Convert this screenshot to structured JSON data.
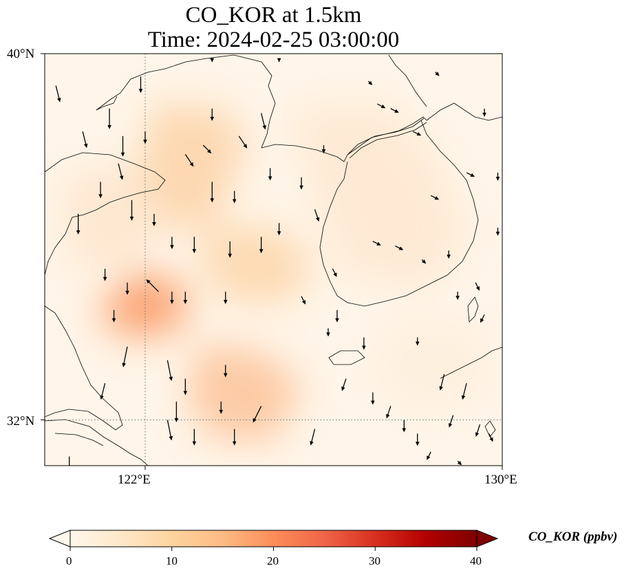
{
  "title": {
    "line1": "CO_KOR at 1.5km",
    "line2": "Time: 2024-02-25 03:00:00"
  },
  "map": {
    "lon_range": [
      119.75,
      130
    ],
    "lat_range": [
      31,
      40
    ],
    "lat_ticks": [
      {
        "value": 40,
        "label": "40°N"
      },
      {
        "value": 32,
        "label": "32°N"
      }
    ],
    "lon_ticks": [
      {
        "value": 122,
        "label": "122°E"
      },
      {
        "value": 130,
        "label": "130°E"
      }
    ],
    "gridlines": {
      "lat": [
        32
      ],
      "lon": [
        122
      ],
      "style": "dotted"
    },
    "field_unit": "ppbv",
    "hotspots": [
      {
        "name": "hotspot-bohai",
        "lon": 122.8,
        "lat": 37.5,
        "value": 14
      },
      {
        "name": "hotspot-shandong-south",
        "lon": 122.1,
        "lat": 34.8,
        "value": 25
      },
      {
        "name": "hotspot-yellow-sea-central",
        "lon": 124.2,
        "lat": 35.5,
        "value": 12
      },
      {
        "name": "hotspot-shanghai-offshore",
        "lon": 123.5,
        "lat": 32.5,
        "value": 17
      },
      {
        "name": "hotspot-korea-central",
        "lon": 127.0,
        "lat": 36.0,
        "value": 5
      },
      {
        "name": "hotspot-korea-north",
        "lon": 125.8,
        "lat": 38.2,
        "value": 6
      }
    ]
  },
  "colorbar": {
    "label": "CO_KOR (ppbv)",
    "min": 0,
    "max": 40,
    "extend": "both",
    "colormap": "OrRd",
    "colors": [
      "#fff7ec",
      "#fee8c8",
      "#fdd49e",
      "#fdbb84",
      "#fc8d59",
      "#ef6548",
      "#d7301f",
      "#b30000",
      "#7f0000"
    ],
    "ticks": [
      {
        "value": 0,
        "label": "0"
      },
      {
        "value": 10,
        "label": "10"
      },
      {
        "value": 20,
        "label": "20"
      },
      {
        "value": 30,
        "label": "30"
      },
      {
        "value": 40,
        "label": "40"
      }
    ]
  },
  "wind_vectors": [
    [
      120.0,
      39.3,
      0.1,
      -0.4
    ],
    [
      120.6,
      38.3,
      0.1,
      -0.4
    ],
    [
      121.5,
      38.2,
      0,
      -0.5
    ],
    [
      121.9,
      39.5,
      0,
      -0.4
    ],
    [
      121.4,
      37.6,
      0.1,
      -0.4
    ],
    [
      121.7,
      36.8,
      0,
      -0.5
    ],
    [
      121.0,
      37.2,
      0,
      -0.4
    ],
    [
      120.5,
      36.5,
      0,
      -0.5
    ],
    [
      122.2,
      36.5,
      0,
      -0.3
    ],
    [
      122.6,
      36.0,
      0,
      -0.3
    ],
    [
      123.1,
      36.0,
      0,
      -0.4
    ],
    [
      123.9,
      35.9,
      0,
      -0.4
    ],
    [
      121.1,
      35.3,
      0,
      -0.3
    ],
    [
      121.6,
      35.0,
      0,
      -0.3
    ],
    [
      122.6,
      34.8,
      0,
      -0.3
    ],
    [
      123.8,
      34.8,
      0,
      -0.3
    ],
    [
      121.3,
      34.4,
      0,
      -0.3
    ],
    [
      122.3,
      34.8,
      -0.3,
      0.3
    ],
    [
      122.9,
      34.8,
      0,
      -0.3
    ],
    [
      121.6,
      33.6,
      -0.1,
      -0.5
    ],
    [
      122.5,
      33.3,
      0.1,
      -0.5
    ],
    [
      123.8,
      33.2,
      0,
      -0.3
    ],
    [
      122.9,
      32.9,
      0,
      -0.4
    ],
    [
      121.1,
      32.8,
      -0.1,
      -0.4
    ],
    [
      122.7,
      32.4,
      0,
      -0.5
    ],
    [
      123.7,
      32.4,
      0,
      -0.3
    ],
    [
      124.6,
      32.3,
      -0.2,
      -0.4
    ],
    [
      125.8,
      31.8,
      -0.1,
      -0.4
    ],
    [
      122.5,
      32.0,
      0.1,
      -0.5
    ],
    [
      123.1,
      31.8,
      0,
      -0.4
    ],
    [
      124.0,
      31.8,
      0,
      -0.4
    ],
    [
      124.3,
      31.0,
      0,
      -0.5
    ],
    [
      120.3,
      31.2,
      0,
      -0.4
    ],
    [
      124.6,
      38.7,
      0.1,
      -0.4
    ],
    [
      124.1,
      38.2,
      0.2,
      -0.3
    ],
    [
      124.8,
      37.5,
      0,
      -0.3
    ],
    [
      123.5,
      37.2,
      0,
      -0.5
    ],
    [
      122.9,
      37.8,
      0.2,
      -0.3
    ],
    [
      123.3,
      38.0,
      0.2,
      -0.2
    ],
    [
      124.0,
      37.0,
      0,
      -0.3
    ],
    [
      123.5,
      38.8,
      0,
      -0.3
    ],
    [
      122.0,
      38.3,
      0,
      -0.3
    ],
    [
      121.2,
      38.8,
      0,
      -0.5
    ],
    [
      125.5,
      37.3,
      0,
      -0.3
    ],
    [
      125.8,
      36.6,
      0.1,
      -0.3
    ],
    [
      126.2,
      35.3,
      0.1,
      -0.2
    ],
    [
      125.5,
      34.7,
      0.1,
      -0.2
    ],
    [
      126.3,
      34.4,
      0,
      -0.3
    ],
    [
      126.9,
      33.8,
      0,
      -0.3
    ],
    [
      126.5,
      32.9,
      -0.1,
      -0.3
    ],
    [
      127.1,
      32.6,
      0,
      -0.3
    ],
    [
      127.5,
      32.3,
      -0.1,
      -0.3
    ],
    [
      127.8,
      32.0,
      0,
      -0.3
    ],
    [
      128.1,
      31.7,
      0,
      -0.3
    ],
    [
      128.4,
      31.3,
      -0.1,
      -0.2
    ],
    [
      128.7,
      33.0,
      -0.1,
      -0.4
    ],
    [
      129.2,
      32.8,
      -0.1,
      -0.4
    ],
    [
      128.9,
      32.1,
      -0.1,
      -0.3
    ],
    [
      129.5,
      31.9,
      -0.1,
      -0.3
    ],
    [
      129.7,
      31.7,
      0.1,
      -0.2
    ],
    [
      129.0,
      31.1,
      0.1,
      -0.1
    ],
    [
      129.0,
      34.8,
      0,
      -0.2
    ],
    [
      128.2,
      35.5,
      0.1,
      -0.1
    ],
    [
      127.6,
      35.8,
      0.2,
      -0.1
    ],
    [
      127.1,
      35.9,
      0.2,
      -0.1
    ],
    [
      128.8,
      35.7,
      0,
      -0.2
    ],
    [
      129.4,
      35.0,
      0.1,
      -0.2
    ],
    [
      128.4,
      36.9,
      0.2,
      -0.1
    ],
    [
      129.2,
      37.4,
      0.2,
      -0.1
    ],
    [
      128.0,
      38.3,
      0.2,
      -0.1
    ],
    [
      127.5,
      38.8,
      0.2,
      -0.1
    ],
    [
      127.2,
      38.9,
      0.2,
      -0.1
    ],
    [
      128.5,
      39.6,
      0.1,
      -0.1
    ],
    [
      129.6,
      38.8,
      0,
      -0.2
    ],
    [
      129.9,
      37.4,
      0,
      -0.2
    ],
    [
      129.9,
      36.2,
      0,
      -0.2
    ],
    [
      125.0,
      39.9,
      0,
      -0.1
    ],
    [
      123.5,
      39.9,
      0,
      -0.1
    ],
    [
      127.0,
      39.4,
      0.1,
      -0.1
    ],
    [
      126.0,
      38.0,
      0,
      -0.2
    ],
    [
      125.0,
      36.3,
      0,
      -0.3
    ],
    [
      124.6,
      36.0,
      0,
      -0.4
    ],
    [
      129.6,
      34.3,
      -0.1,
      -0.2
    ],
    [
      126.1,
      34.0,
      0,
      -0.2
    ],
    [
      128.1,
      33.8,
      0,
      -0.2
    ]
  ]
}
